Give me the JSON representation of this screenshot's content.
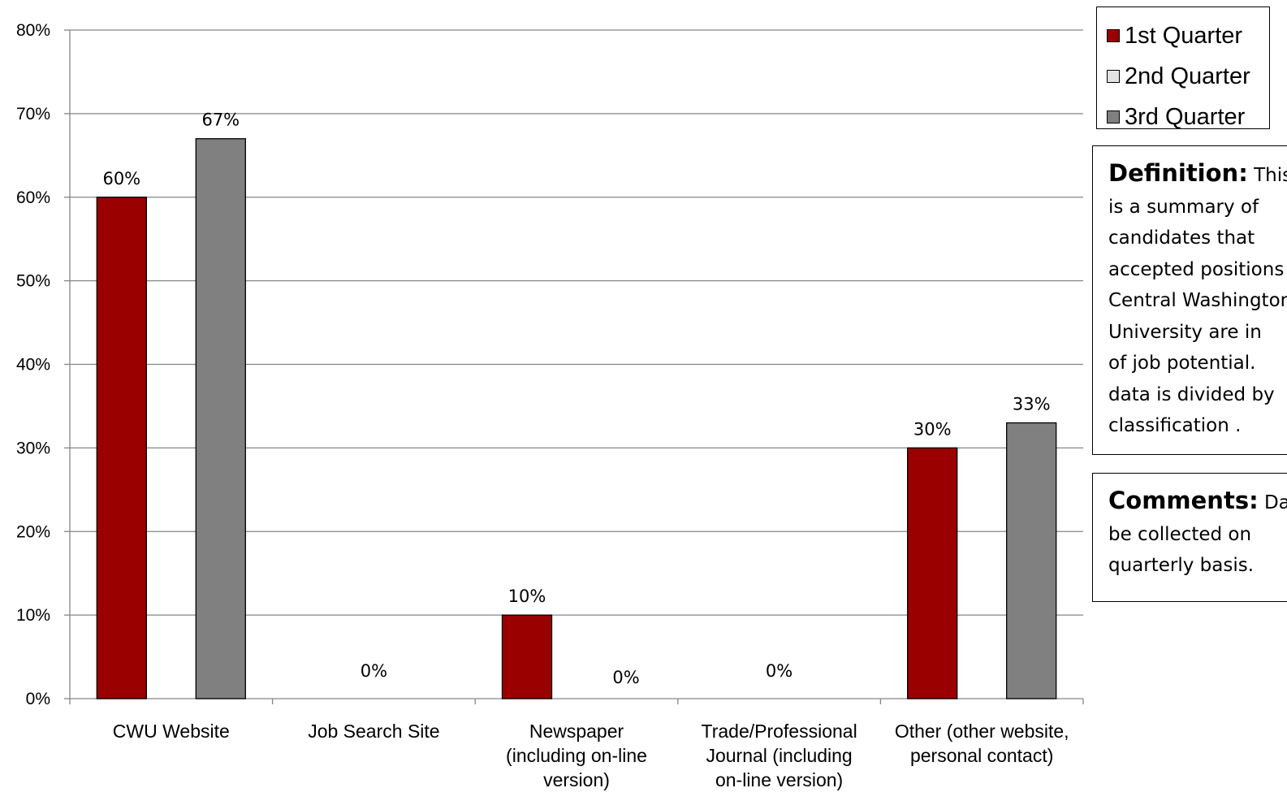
{
  "chart_data": {
    "type": "bar",
    "title": "",
    "xlabel": "",
    "ylabel": "",
    "ylim": [
      0,
      80
    ],
    "y_ticks": [
      "0%",
      "10%",
      "20%",
      "30%",
      "40%",
      "50%",
      "60%",
      "70%",
      "80%"
    ],
    "grid": true,
    "legend_placement": "top-right",
    "categories": [
      [
        "CWU Website"
      ],
      [
        "Job Search Site"
      ],
      [
        "Newspaper",
        "(including on-line",
        "version)"
      ],
      [
        "Trade/Professional",
        "Journal (including",
        "on-line version)"
      ],
      [
        "Other (other website,",
        "personal contact)"
      ]
    ],
    "series": [
      {
        "name": "1st Quarter",
        "color": "#9b0000",
        "values": [
          60,
          null,
          10,
          null,
          30
        ]
      },
      {
        "name": "2nd Quarter",
        "color": "#e3e3e3",
        "values": [
          null,
          null,
          null,
          null,
          null
        ]
      },
      {
        "name": "3rd Quarter",
        "color": "#808080",
        "values": [
          67,
          null,
          0,
          null,
          33
        ]
      }
    ],
    "data_labels": [
      {
        "category": 0,
        "series": 0,
        "text": "60%"
      },
      {
        "category": 0,
        "series": 2,
        "text": "67%"
      },
      {
        "category": 1,
        "series": 1,
        "text": "0%"
      },
      {
        "category": 2,
        "series": 0,
        "text": "10%"
      },
      {
        "category": 2,
        "series": 2,
        "text": "0%"
      },
      {
        "category": 3,
        "series": 1,
        "text": "0%"
      },
      {
        "category": 4,
        "series": 0,
        "text": "30%"
      },
      {
        "category": 4,
        "series": 2,
        "text": "33%"
      }
    ]
  },
  "legend": {
    "items": [
      {
        "label": "1st Quarter",
        "color": "#9b0000"
      },
      {
        "label": "2nd Quarter",
        "color": "#e3e3e3"
      },
      {
        "label": "3rd Quarter",
        "color": "#808080"
      }
    ]
  },
  "definition": {
    "label": "Definition:",
    "lines": [
      "This",
      "is a summary of",
      "candidates that",
      "accepted positions",
      "Central Washington",
      "University are in",
      "of job potential.",
      "data is divided by",
      "classification ."
    ]
  },
  "comments": {
    "label": "Comments:",
    "lines": [
      "Data",
      "be collected on",
      "quarterly basis."
    ]
  }
}
